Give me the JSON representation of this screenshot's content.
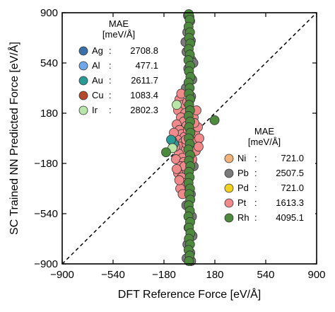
{
  "chart_data": {
    "type": "scatter",
    "xlabel": "DFT Reference Force [eV/Å]",
    "ylabel": "SC Trained NN Predicted Force [eV/Å]",
    "xlim": [
      -900,
      900
    ],
    "ylim": [
      -900,
      900
    ],
    "x_ticks": [
      -900,
      -540,
      -180,
      180,
      540,
      900
    ],
    "y_ticks": [
      -900,
      -540,
      -180,
      180,
      540,
      900
    ],
    "x_tick_labels": [
      "−900",
      "−540",
      "−180",
      "180",
      "540",
      "900"
    ],
    "y_tick_labels": [
      "−900",
      "−540",
      "−180",
      "180",
      "540",
      "900"
    ],
    "reference_line": {
      "style": "dashed",
      "from": [
        -900,
        -900
      ],
      "to": [
        900,
        900
      ]
    },
    "grid": false,
    "legends": [
      {
        "placement": "top-left",
        "title": "MAE\n[meV/Å]",
        "entries": [
          {
            "name": "Ag",
            "value": "2708.8",
            "color": "#3a6fa8"
          },
          {
            "name": "Al",
            "value": "477.1",
            "color": "#6fa8e8"
          },
          {
            "name": "Au",
            "value": "2611.7",
            "color": "#2a9a96"
          },
          {
            "name": "Cu",
            "value": "1083.4",
            "color": "#b5482a"
          },
          {
            "name": "Ir",
            "value": "2802.3",
            "color": "#b8e6a8"
          }
        ]
      },
      {
        "placement": "bottom-right",
        "title": "MAE\n[meV/Å]",
        "entries": [
          {
            "name": "Ni",
            "value": "721.0",
            "color": "#f2b27a"
          },
          {
            "name": "Pb",
            "value": "2507.5",
            "color": "#7a7a7a"
          },
          {
            "name": "Pd",
            "value": "721.0",
            "color": "#f2d21e"
          },
          {
            "name": "Pt",
            "value": "1613.3",
            "color": "#f08a8a"
          },
          {
            "name": "Rh",
            "value": "4095.1",
            "color": "#4e8a3e"
          }
        ]
      }
    ],
    "series": [
      {
        "name": "Pb",
        "color": "#7a7a7a",
        "points": [
          [
            -10,
            880
          ],
          [
            5,
            840
          ],
          [
            -15,
            760
          ],
          [
            10,
            700
          ],
          [
            -20,
            620
          ],
          [
            15,
            560
          ],
          [
            -8,
            500
          ],
          [
            20,
            420
          ],
          [
            -25,
            360
          ],
          [
            12,
            300
          ],
          [
            -5,
            240
          ],
          [
            25,
            120
          ],
          [
            -30,
            60
          ],
          [
            8,
            -40
          ],
          [
            -12,
            -120
          ],
          [
            30,
            -200
          ],
          [
            -18,
            -300
          ],
          [
            10,
            -400
          ],
          [
            -22,
            -480
          ],
          [
            18,
            -560
          ],
          [
            -6,
            -640
          ],
          [
            22,
            -700
          ],
          [
            -14,
            -760
          ],
          [
            6,
            -820
          ],
          [
            -20,
            -860
          ],
          [
            12,
            -880
          ],
          [
            0,
            870
          ],
          [
            -28,
            690
          ],
          [
            28,
            540
          ],
          [
            -2,
            150
          ]
        ]
      },
      {
        "name": "Pt",
        "color": "#f08a8a",
        "points": [
          [
            -70,
            280
          ],
          [
            -50,
            240
          ],
          [
            -80,
            200
          ],
          [
            -30,
            180
          ],
          [
            -60,
            150
          ],
          [
            -40,
            120
          ],
          [
            -90,
            100
          ],
          [
            -20,
            90
          ],
          [
            -70,
            60
          ],
          [
            -55,
            30
          ],
          [
            -35,
            10
          ],
          [
            -85,
            -10
          ],
          [
            -45,
            -30
          ],
          [
            -65,
            -60
          ],
          [
            -25,
            -80
          ],
          [
            -75,
            -110
          ],
          [
            -50,
            -140
          ],
          [
            -95,
            -150
          ],
          [
            -40,
            -170
          ],
          [
            -60,
            -200
          ],
          [
            -30,
            -230
          ],
          [
            -80,
            -250
          ],
          [
            -55,
            -280
          ],
          [
            -45,
            -320
          ],
          [
            -65,
            -360
          ],
          [
            -35,
            -200
          ],
          [
            -100,
            -60
          ],
          [
            -110,
            40
          ],
          [
            -20,
            -40
          ],
          [
            -10,
            60
          ],
          [
            40,
            40
          ],
          [
            55,
            -20
          ],
          [
            60,
            80
          ],
          [
            45,
            -90
          ],
          [
            30,
            150
          ],
          [
            50,
            200
          ],
          [
            -58,
            320
          ],
          [
            -48,
            -400
          ],
          [
            70,
            0
          ],
          [
            65,
            -60
          ],
          [
            20,
            -150
          ],
          [
            -15,
            260
          ],
          [
            -90,
            -220
          ],
          [
            -72,
            -300
          ],
          [
            35,
            110
          ],
          [
            -25,
            -10
          ]
        ]
      },
      {
        "name": "Au",
        "color": "#2a9a96",
        "points": [
          [
            -120,
            -20
          ],
          [
            -110,
            -40
          ],
          [
            -130,
            -10
          ]
        ]
      },
      {
        "name": "Ir",
        "color": "#b8e6a8",
        "points": [
          [
            -90,
            240
          ],
          [
            -120,
            -70
          ]
        ]
      },
      {
        "name": "Rh",
        "color": "#4e8a3e",
        "points": [
          [
            -4,
            890
          ],
          [
            2,
            850
          ],
          [
            -6,
            800
          ],
          [
            4,
            760
          ],
          [
            -2,
            720
          ],
          [
            6,
            680
          ],
          [
            -5,
            640
          ],
          [
            3,
            600
          ],
          [
            -7,
            560
          ],
          [
            5,
            520
          ],
          [
            -3,
            480
          ],
          [
            7,
            440
          ],
          [
            -6,
            400
          ],
          [
            2,
            360
          ],
          [
            -4,
            320
          ],
          [
            6,
            280
          ],
          [
            -2,
            240
          ],
          [
            4,
            200
          ],
          [
            -6,
            160
          ],
          [
            5,
            120
          ],
          [
            -3,
            80
          ],
          [
            7,
            40
          ],
          [
            -5,
            0
          ],
          [
            3,
            -40
          ],
          [
            -7,
            -80
          ],
          [
            5,
            -120
          ],
          [
            -3,
            -160
          ],
          [
            6,
            -200
          ],
          [
            -4,
            -240
          ],
          [
            2,
            -280
          ],
          [
            -6,
            -320
          ],
          [
            4,
            -360
          ],
          [
            -2,
            -400
          ],
          [
            6,
            -440
          ],
          [
            -5,
            -480
          ],
          [
            3,
            -520
          ],
          [
            -7,
            -560
          ],
          [
            5,
            -600
          ],
          [
            -3,
            -640
          ],
          [
            7,
            -680
          ],
          [
            -4,
            -720
          ],
          [
            4,
            -760
          ],
          [
            -6,
            -800
          ],
          [
            2,
            -840
          ],
          [
            -4,
            -880
          ],
          [
            178,
            130
          ],
          [
            -165,
            -100
          ]
        ]
      }
    ]
  }
}
